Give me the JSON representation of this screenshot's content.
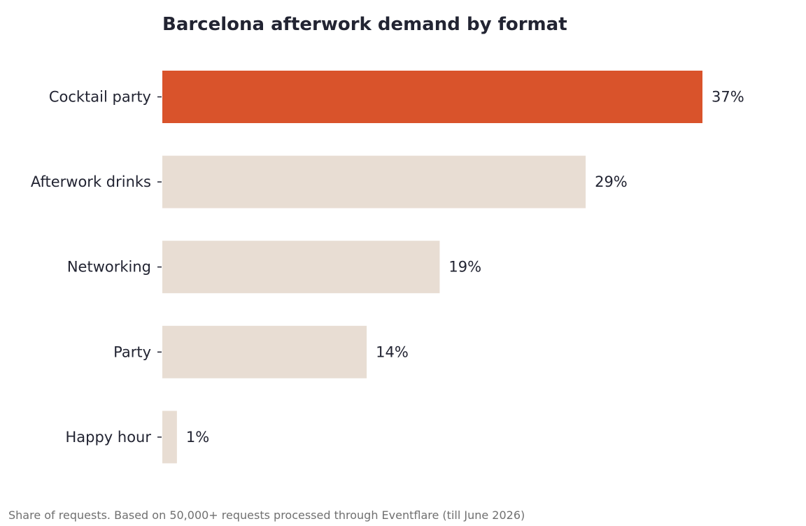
{
  "chart_data": {
    "type": "bar",
    "orientation": "horizontal",
    "title": "Barcelona afterwork demand by format",
    "footnote": "Share of requests. Based on 50,000+ requests processed through Eventflare (till June 2026)",
    "categories": [
      "Cocktail party",
      "Afterwork drinks",
      "Networking",
      "Party",
      "Happy hour"
    ],
    "values": [
      37,
      29,
      19,
      14,
      1
    ],
    "value_labels": [
      "37%",
      "29%",
      "19%",
      "14%",
      "1%"
    ],
    "unit": "%",
    "xlim": [
      0,
      37
    ],
    "grid": false,
    "legend": "none",
    "highlight_index": 0,
    "colors": {
      "highlight": "#D9532B",
      "default": "#E8DDD3",
      "text": "#222432",
      "footnote": "#707070"
    }
  }
}
